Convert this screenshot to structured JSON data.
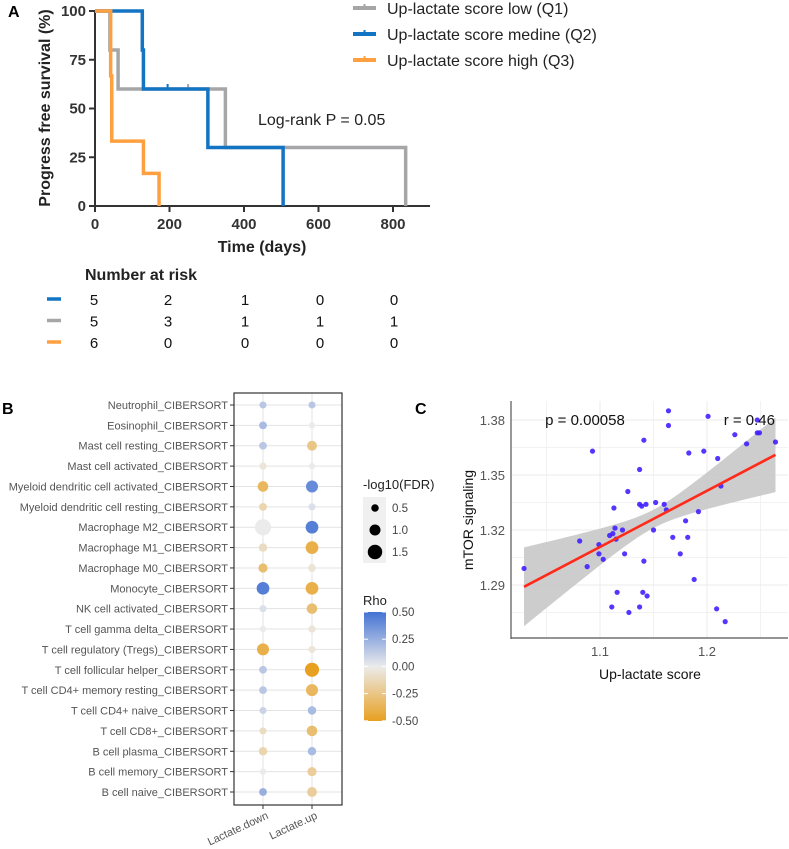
{
  "panels": {
    "a": "A",
    "b": "B",
    "c": "C"
  },
  "colors": {
    "q1": "#A6A6A8",
    "q2": "#1474C4",
    "q3": "#FFA040",
    "rho_high": "#4473D4",
    "rho_mid": "#EBEBEB",
    "rho_low": "#E8A020",
    "points": "#4020FF",
    "fit": "#FF2A1A",
    "band": "#C8C8C8"
  },
  "chart_data": [
    {
      "type": "line",
      "subtype": "kaplan-meier",
      "xlabel": "Time (days)",
      "ylabel": "Progress free survival (%)",
      "xlim": [
        0,
        900
      ],
      "ylim": [
        0,
        100
      ],
      "xticks": [
        "0",
        "200",
        "400",
        "600",
        "800"
      ],
      "yticks": [
        "0",
        "25",
        "50",
        "75",
        "100"
      ],
      "annotation": "Log-rank P = 0.05",
      "legend_position": "top-right",
      "series": [
        {
          "name": "Up-lactate score low (Q1)",
          "color_key": "q1",
          "steps": [
            [
              0,
              100
            ],
            [
              40,
              100
            ],
            [
              40,
              80
            ],
            [
              62,
              80
            ],
            [
              62,
              60
            ],
            [
              350,
              60
            ],
            [
              350,
              30
            ],
            [
              834,
              30
            ],
            [
              834,
              0
            ]
          ],
          "censored": [
            [
              250,
              60
            ]
          ]
        },
        {
          "name": "Up-lactate score medine (Q2)",
          "color_key": "q2",
          "steps": [
            [
              0,
              100
            ],
            [
              127,
              100
            ],
            [
              127,
              80
            ],
            [
              130,
              80
            ],
            [
              130,
              60
            ],
            [
              303,
              60
            ],
            [
              303,
              30
            ],
            [
              505,
              30
            ],
            [
              505,
              0
            ]
          ],
          "censored": [
            [
              195,
              60
            ]
          ]
        },
        {
          "name": "Up-lactate score high (Q3)",
          "color_key": "q3",
          "steps": [
            [
              0,
              100
            ],
            [
              42,
              100
            ],
            [
              42,
              66.7
            ],
            [
              45,
              66.7
            ],
            [
              45,
              33.3
            ],
            [
              130,
              33.3
            ],
            [
              130,
              16.7
            ],
            [
              172,
              16.7
            ],
            [
              172,
              0
            ]
          ],
          "censored": []
        }
      ],
      "risk_table": {
        "title": "Number at risk",
        "rows": [
          {
            "color_key": "q2",
            "values": [
              "5",
              "2",
              "1",
              "0",
              "0"
            ]
          },
          {
            "color_key": "q1",
            "values": [
              "5",
              "3",
              "1",
              "1",
              "1"
            ]
          },
          {
            "color_key": "q3",
            "values": [
              "6",
              "0",
              "0",
              "0",
              "0"
            ]
          }
        ]
      }
    },
    {
      "type": "scatter",
      "subtype": "dot-matrix",
      "columns": [
        "Lactate.down",
        "Lactate.up"
      ],
      "rows": [
        "Neutrophil_CIBERSORT",
        "Eosinophil_CIBERSORT",
        "Mast cell resting_CIBERSORT",
        "Mast cell activated_CIBERSORT",
        "Myeloid dendritic cell activated_CIBERSORT",
        "Myeloid dendritic cell resting_CIBERSORT",
        "Macrophage M2_CIBERSORT",
        "Macrophage M1_CIBERSORT",
        "Macrophage M0_CIBERSORT",
        "Monocyte_CIBERSORT",
        "NK cell activated_CIBERSORT",
        "T cell gamma delta_CIBERSORT",
        "T cell regulatory (Tregs)_CIBERSORT",
        "T cell follicular helper_CIBERSORT",
        "T cell CD4+ memory resting_CIBERSORT",
        "T cell CD4+ naive_CIBERSORT",
        "T cell CD8+_CIBERSORT",
        "B cell plasma_CIBERSORT",
        "B cell memory_CIBERSORT",
        "B cell naive_CIBERSORT"
      ],
      "rho": [
        [
          0.15,
          0.15
        ],
        [
          0.2,
          0.0
        ],
        [
          0.15,
          -0.25
        ],
        [
          -0.05,
          0.0
        ],
        [
          -0.35,
          0.4
        ],
        [
          -0.15,
          0.05
        ],
        [
          0.0,
          0.45
        ],
        [
          -0.1,
          -0.4
        ],
        [
          -0.3,
          -0.05
        ],
        [
          0.45,
          -0.4
        ],
        [
          0.05,
          -0.3
        ],
        [
          0.0,
          -0.05
        ],
        [
          -0.4,
          -0.05
        ],
        [
          0.15,
          -0.5
        ],
        [
          0.15,
          -0.35
        ],
        [
          0.1,
          0.2
        ],
        [
          -0.1,
          -0.3
        ],
        [
          -0.15,
          0.2
        ],
        [
          0.0,
          -0.2
        ],
        [
          0.25,
          -0.2
        ]
      ],
      "neg_log10_fdr": [
        [
          0.3,
          0.3
        ],
        [
          0.4,
          0.2
        ],
        [
          0.4,
          0.7
        ],
        [
          0.3,
          0.2
        ],
        [
          0.8,
          1.0
        ],
        [
          0.4,
          0.3
        ],
        [
          1.6,
          1.1
        ],
        [
          0.5,
          1.1
        ],
        [
          0.6,
          0.4
        ],
        [
          1.1,
          1.1
        ],
        [
          0.3,
          0.8
        ],
        [
          0.2,
          0.3
        ],
        [
          1.0,
          0.3
        ],
        [
          0.4,
          1.3
        ],
        [
          0.4,
          1.0
        ],
        [
          0.3,
          0.5
        ],
        [
          0.3,
          0.8
        ],
        [
          0.5,
          0.5
        ],
        [
          0.2,
          0.6
        ],
        [
          0.4,
          0.7
        ]
      ],
      "size_legend": {
        "title": "-log10(FDR)",
        "values": [
          0.5,
          1.0,
          1.5
        ],
        "labels": [
          "0.5",
          "1.0",
          "1.5"
        ]
      },
      "color_legend": {
        "title": "Rho",
        "range": [
          -0.5,
          0.5
        ],
        "labels": [
          "0.50",
          "0.25",
          "0.00",
          "-0.25",
          "-0.50"
        ]
      }
    },
    {
      "type": "scatter",
      "xlabel": "Up-lactate score",
      "ylabel": "mTOR signaling",
      "xlim": [
        1.017,
        1.275
      ],
      "ylim": [
        1.261,
        1.39
      ],
      "xticks": [
        "1.1",
        "1.2"
      ],
      "yticks": [
        "1.29",
        "1.32",
        "1.35",
        "1.38"
      ],
      "grid": true,
      "annotations": {
        "p": "p = 0.00058",
        "r": "r = 0.46"
      },
      "fit": {
        "x": [
          1.029,
          1.264
        ],
        "y": [
          1.289,
          1.361
        ],
        "ci_center": 1.15,
        "ci_min_halfwidth": 0.005,
        "ci_curvature": 0.0299
      },
      "points": [
        [
          1.029,
          1.299
        ],
        [
          1.081,
          1.314
        ],
        [
          1.088,
          1.3
        ],
        [
          1.093,
          1.363
        ],
        [
          1.099,
          1.312
        ],
        [
          1.099,
          1.307
        ],
        [
          1.103,
          1.304
        ],
        [
          1.111,
          1.278
        ],
        [
          1.113,
          1.332
        ],
        [
          1.109,
          1.317
        ],
        [
          1.112,
          1.318
        ],
        [
          1.114,
          1.321
        ],
        [
          1.115,
          1.315
        ],
        [
          1.116,
          1.286
        ],
        [
          1.121,
          1.32
        ],
        [
          1.123,
          1.307
        ],
        [
          1.126,
          1.341
        ],
        [
          1.127,
          1.275
        ],
        [
          1.137,
          1.353
        ],
        [
          1.137,
          1.278
        ],
        [
          1.137,
          1.334
        ],
        [
          1.139,
          1.333
        ],
        [
          1.14,
          1.286
        ],
        [
          1.141,
          1.369
        ],
        [
          1.141,
          1.303
        ],
        [
          1.143,
          1.334
        ],
        [
          1.144,
          1.284
        ],
        [
          1.15,
          1.32
        ],
        [
          1.152,
          1.335
        ],
        [
          1.16,
          1.334
        ],
        [
          1.162,
          1.331
        ],
        [
          1.164,
          1.385
        ],
        [
          1.164,
          1.377
        ],
        [
          1.168,
          1.316
        ],
        [
          1.175,
          1.307
        ],
        [
          1.18,
          1.325
        ],
        [
          1.182,
          1.316
        ],
        [
          1.183,
          1.362
        ],
        [
          1.188,
          1.293
        ],
        [
          1.192,
          1.33
        ],
        [
          1.197,
          1.363
        ],
        [
          1.201,
          1.382
        ],
        [
          1.209,
          1.277
        ],
        [
          1.21,
          1.359
        ],
        [
          1.213,
          1.344
        ],
        [
          1.217,
          1.27
        ],
        [
          1.226,
          1.372
        ],
        [
          1.237,
          1.367
        ],
        [
          1.247,
          1.373
        ],
        [
          1.249,
          1.373
        ],
        [
          1.247,
          1.38
        ],
        [
          1.264,
          1.368
        ]
      ]
    }
  ]
}
